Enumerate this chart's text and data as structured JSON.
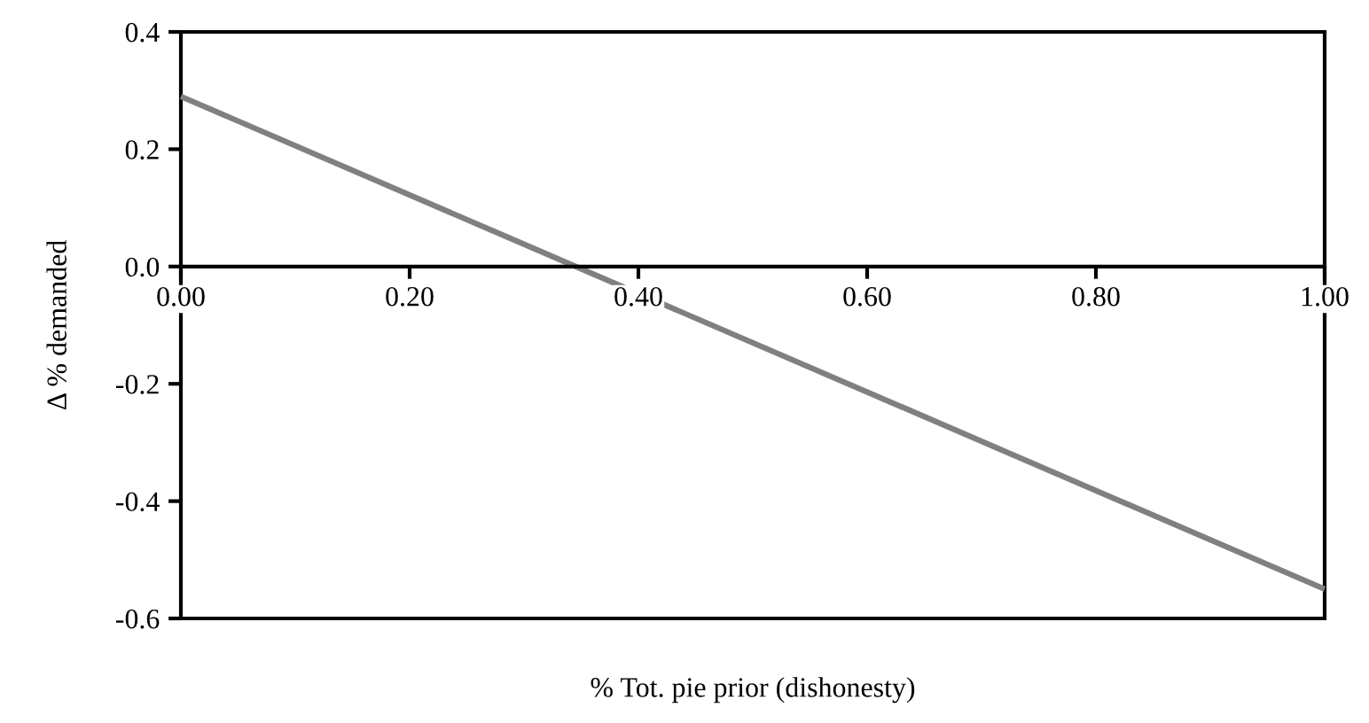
{
  "chart_data": {
    "type": "line",
    "xlabel": "% Tot. pie prior (dishonesty)",
    "ylabel": "Δ % demanded",
    "x": [
      0,
      1
    ],
    "series": [
      {
        "color": "#808080",
        "values": [
          0.29,
          -0.55
        ]
      }
    ],
    "xlim": [
      0,
      1
    ],
    "ylim": [
      -0.6,
      0.4
    ],
    "xticks": [
      {
        "value": 0,
        "label": "0.00"
      },
      {
        "value": 0.2,
        "label": "0.20"
      },
      {
        "value": 0.4,
        "label": "0.40"
      },
      {
        "value": 0.6,
        "label": "0.60"
      },
      {
        "value": 0.8,
        "label": "0.80"
      },
      {
        "value": 1,
        "label": "1.00"
      }
    ],
    "yticks": [
      {
        "value": -0.6,
        "label": "-0.6"
      },
      {
        "value": -0.4,
        "label": "-0.4"
      },
      {
        "value": -0.2,
        "label": "-0.2"
      },
      {
        "value": 0,
        "label": "0.0"
      },
      {
        "value": 0.2,
        "label": "0.2"
      },
      {
        "value": 0.4,
        "label": "0.4"
      }
    ],
    "grid": false,
    "legend": false,
    "marker": "none",
    "line_style": "solid"
  }
}
